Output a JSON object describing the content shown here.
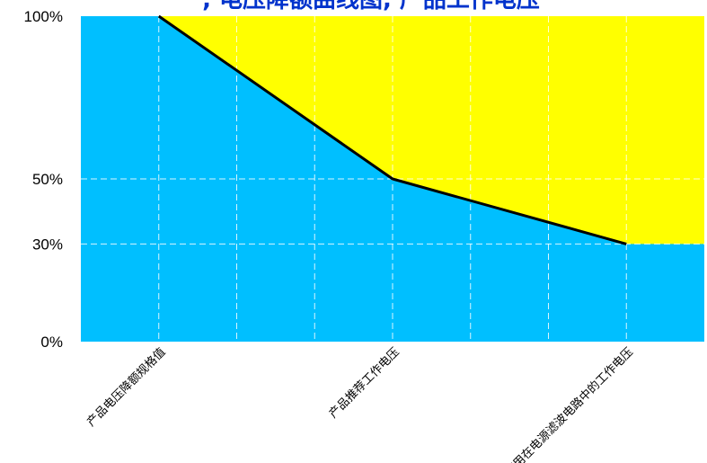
{
  "chart_data": {
    "type": "area",
    "title": "一, 电压降额曲线图, 产品工作电压",
    "xlabel": "",
    "ylabel": "",
    "x_ticks": [
      {
        "x": 0.5,
        "label": "产品电压降额规格值"
      },
      {
        "x": 2,
        "label": "产品推荐工作电压"
      },
      {
        "x": 3.5,
        "label": "使用在电源滤波电路中的工作电压"
      }
    ],
    "y_ticks": [
      {
        "y": 0,
        "label": "0%"
      },
      {
        "y": 30,
        "label": "30%"
      },
      {
        "y": 50,
        "label": "50%"
      },
      {
        "y": 100,
        "label": "100%"
      }
    ],
    "xlim": [
      0,
      4
    ],
    "ylim": [
      0,
      100
    ],
    "boundary": {
      "x": [
        0.5,
        2,
        3.5,
        4
      ],
      "y": [
        100,
        50,
        30,
        30
      ]
    },
    "grid_x": [
      0.5,
      1,
      1.5,
      2,
      2.5,
      3,
      3.5
    ],
    "grid_y": [
      30,
      50
    ],
    "grid": true,
    "colors": {
      "lower": "#00bfff",
      "upper": "#ffff00",
      "boundary": "#000000",
      "title": "#0033cc"
    }
  }
}
